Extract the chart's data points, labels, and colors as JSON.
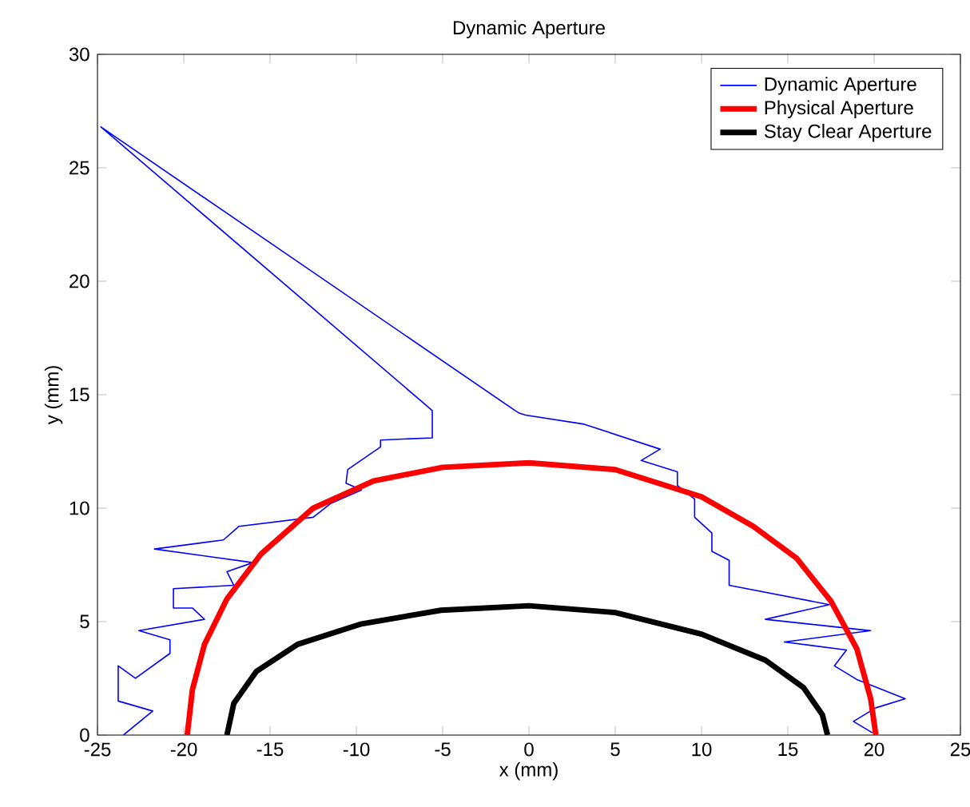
{
  "chart_data": {
    "type": "line",
    "title": "Dynamic Aperture",
    "xlabel": "x (mm)",
    "ylabel": "y (mm)",
    "xlim": [
      -25,
      25
    ],
    "ylim": [
      0,
      30
    ],
    "xticks": [
      -25,
      -20,
      -15,
      -10,
      -5,
      0,
      5,
      10,
      15,
      20,
      25
    ],
    "yticks": [
      0,
      5,
      10,
      15,
      20,
      25,
      30
    ],
    "grid": false,
    "legend": "top right",
    "marker": "none",
    "line_style": "solid",
    "series": [
      {
        "name": "Dynamic Aperture",
        "color": "#0000ff",
        "x": [
          -23.5,
          -21.8,
          -23.8,
          -23.8,
          -22.8,
          -20.8,
          -20.8,
          -22.6,
          -18.8,
          -19.5,
          -20.6,
          -20.6,
          -17.1,
          -17.5,
          -16.0,
          -21.7,
          -17.7,
          -16.8,
          -12.5,
          -11.5,
          -9.7,
          -10.6,
          -10.5,
          -8.6,
          -8.6,
          -5.6,
          -5.6,
          -24.8,
          -0.8,
          -0.6,
          -0.2,
          3.2,
          7.6,
          6.5,
          8.6,
          8.6,
          9.6,
          9.6,
          10.6,
          10.6,
          11.6,
          11.6,
          17.4,
          13.7,
          19.8,
          14.8,
          18.4,
          17.7,
          19.0,
          21.8,
          20.1,
          18.8,
          19.9
        ],
        "values": [
          0,
          1.06,
          1.5,
          3.05,
          2.5,
          3.6,
          4.2,
          4.6,
          5.1,
          5.6,
          5.6,
          6.45,
          6.6,
          7.2,
          7.6,
          8.2,
          8.6,
          9.2,
          9.6,
          10.2,
          10.8,
          11.1,
          11.7,
          12.7,
          13.0,
          13.1,
          14.3,
          26.8,
          14.3,
          14.2,
          14.1,
          13.7,
          12.6,
          12.1,
          11.6,
          11.0,
          10.4,
          9.6,
          8.9,
          8.1,
          7.7,
          6.6,
          5.75,
          5.1,
          4.6,
          4.1,
          3.75,
          3.05,
          2.45,
          1.6,
          1.2,
          0.6,
          0.1
        ]
      },
      {
        "name": "Physical Aperture",
        "color": "#ff0000",
        "x": [
          -19.8,
          -19.5,
          -18.8,
          -17.5,
          -15.5,
          -12.5,
          -9,
          -5,
          0,
          5,
          10,
          13,
          15.5,
          17.5,
          19,
          19.8,
          20.1
        ],
        "values": [
          0,
          2,
          4,
          6,
          8,
          10,
          11.2,
          11.8,
          12,
          11.7,
          10.5,
          9.2,
          7.8,
          5.9,
          3.8,
          1.6,
          0
        ]
      },
      {
        "name": "Stay Clear Aperture",
        "color": "#000000",
        "x": [
          -17.5,
          -17.1,
          -15.8,
          -13.4,
          -9.7,
          -5.1,
          0,
          5,
          10,
          13.7,
          15.9,
          17.0,
          17.3
        ],
        "values": [
          0,
          1.4,
          2.8,
          4.0,
          4.9,
          5.5,
          5.7,
          5.4,
          4.45,
          3.3,
          2.1,
          0.9,
          0
        ]
      }
    ]
  }
}
